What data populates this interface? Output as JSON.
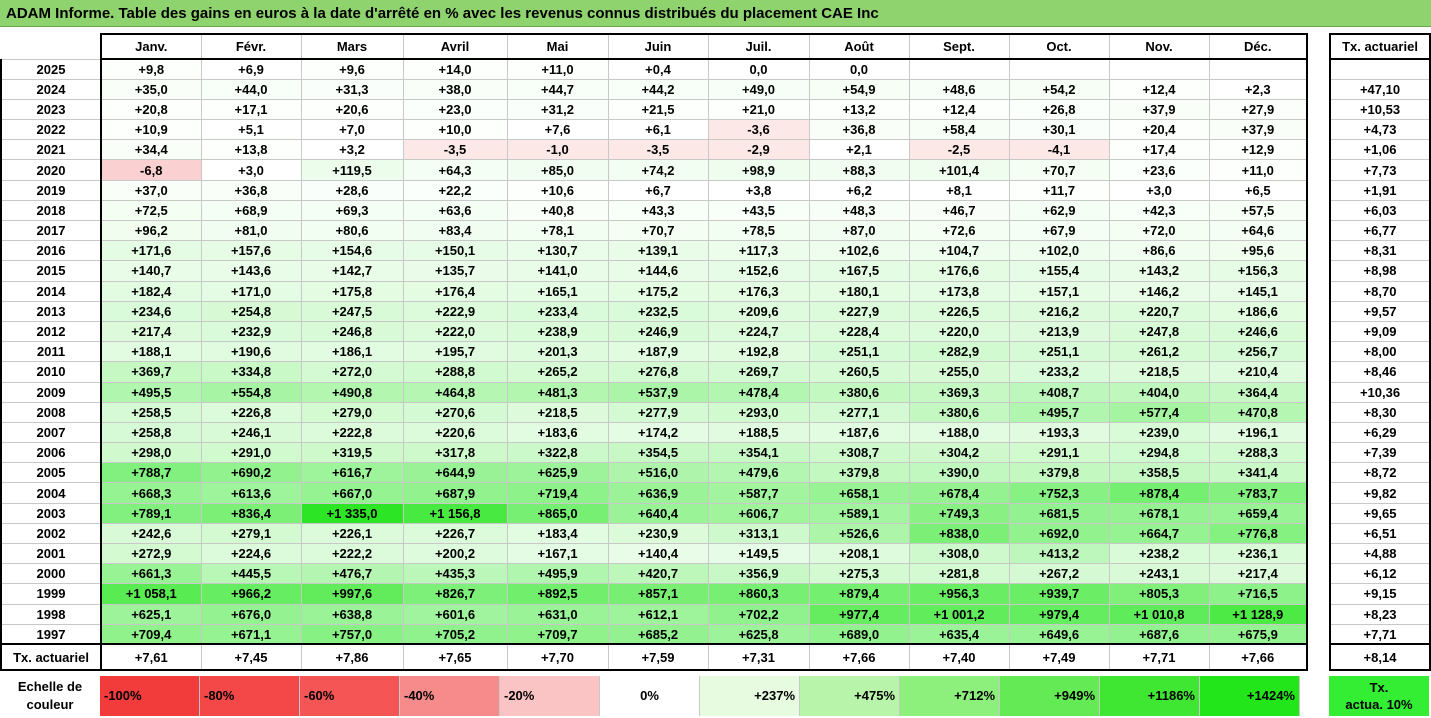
{
  "title": "ADAM Informe. Table des gains en euros à la date d'arrêté en % avec les revenus connus distribués du placement CAE Inc",
  "months": [
    "Janv.",
    "Févr.",
    "Mars",
    "Avril",
    "Mai",
    "Juin",
    "Juil.",
    "Août",
    "Sept.",
    "Oct.",
    "Nov.",
    "Déc."
  ],
  "side_header": "Tx. actuariel",
  "rows": [
    {
      "year": "2025",
      "values": [
        "+9,8",
        "+6,9",
        "+9,6",
        "+14,0",
        "+11,0",
        "+0,4",
        "0,0",
        "0,0",
        "",
        "",
        "",
        ""
      ],
      "rate": ""
    },
    {
      "year": "2024",
      "values": [
        "+35,0",
        "+44,0",
        "+31,3",
        "+38,0",
        "+44,7",
        "+44,2",
        "+49,0",
        "+54,9",
        "+48,6",
        "+54,2",
        "+12,4",
        "+2,3"
      ],
      "rate": "+47,10"
    },
    {
      "year": "2023",
      "values": [
        "+20,8",
        "+17,1",
        "+20,6",
        "+23,0",
        "+31,2",
        "+21,5",
        "+21,0",
        "+13,2",
        "+12,4",
        "+26,8",
        "+37,9",
        "+27,9"
      ],
      "rate": "+10,53"
    },
    {
      "year": "2022",
      "values": [
        "+10,9",
        "+5,1",
        "+7,0",
        "+10,0",
        "+7,6",
        "+6,1",
        "-3,6",
        "+36,8",
        "+58,4",
        "+30,1",
        "+20,4",
        "+37,9"
      ],
      "rate": "+4,73"
    },
    {
      "year": "2021",
      "values": [
        "+34,4",
        "+13,8",
        "+3,2",
        "-3,5",
        "-1,0",
        "-3,5",
        "-2,9",
        "+2,1",
        "-2,5",
        "-4,1",
        "+17,4",
        "+12,9"
      ],
      "rate": "+1,06"
    },
    {
      "year": "2020",
      "values": [
        "-6,8",
        "+3,0",
        "+119,5",
        "+64,3",
        "+85,0",
        "+74,2",
        "+98,9",
        "+88,3",
        "+101,4",
        "+70,7",
        "+23,6",
        "+11,0"
      ],
      "rate": "+7,73"
    },
    {
      "year": "2019",
      "values": [
        "+37,0",
        "+36,8",
        "+28,6",
        "+22,2",
        "+10,6",
        "+6,7",
        "+3,8",
        "+6,2",
        "+8,1",
        "+11,7",
        "+3,0",
        "+6,5"
      ],
      "rate": "+1,91"
    },
    {
      "year": "2018",
      "values": [
        "+72,5",
        "+68,9",
        "+69,3",
        "+63,6",
        "+40,8",
        "+43,3",
        "+43,5",
        "+48,3",
        "+46,7",
        "+62,9",
        "+42,3",
        "+57,5"
      ],
      "rate": "+6,03"
    },
    {
      "year": "2017",
      "values": [
        "+96,2",
        "+81,0",
        "+80,6",
        "+83,4",
        "+78,1",
        "+70,7",
        "+78,5",
        "+87,0",
        "+72,6",
        "+67,9",
        "+72,0",
        "+64,6"
      ],
      "rate": "+6,77"
    },
    {
      "year": "2016",
      "values": [
        "+171,6",
        "+157,6",
        "+154,6",
        "+150,1",
        "+130,7",
        "+139,1",
        "+117,3",
        "+102,6",
        "+104,7",
        "+102,0",
        "+86,6",
        "+95,6"
      ],
      "rate": "+8,31"
    },
    {
      "year": "2015",
      "values": [
        "+140,7",
        "+143,6",
        "+142,7",
        "+135,7",
        "+141,0",
        "+144,6",
        "+152,6",
        "+167,5",
        "+176,6",
        "+155,4",
        "+143,2",
        "+156,3"
      ],
      "rate": "+8,98"
    },
    {
      "year": "2014",
      "values": [
        "+182,4",
        "+171,0",
        "+175,8",
        "+176,4",
        "+165,1",
        "+175,2",
        "+176,3",
        "+180,1",
        "+173,8",
        "+157,1",
        "+146,2",
        "+145,1"
      ],
      "rate": "+8,70"
    },
    {
      "year": "2013",
      "values": [
        "+234,6",
        "+254,8",
        "+247,5",
        "+222,9",
        "+233,4",
        "+232,5",
        "+209,6",
        "+227,9",
        "+226,5",
        "+216,2",
        "+220,7",
        "+186,6"
      ],
      "rate": "+9,57"
    },
    {
      "year": "2012",
      "values": [
        "+217,4",
        "+232,9",
        "+246,8",
        "+222,0",
        "+238,9",
        "+246,9",
        "+224,7",
        "+228,4",
        "+220,0",
        "+213,9",
        "+247,8",
        "+246,6"
      ],
      "rate": "+9,09"
    },
    {
      "year": "2011",
      "values": [
        "+188,1",
        "+190,6",
        "+186,1",
        "+195,7",
        "+201,3",
        "+187,9",
        "+192,8",
        "+251,1",
        "+282,9",
        "+251,1",
        "+261,2",
        "+256,7"
      ],
      "rate": "+8,00"
    },
    {
      "year": "2010",
      "values": [
        "+369,7",
        "+334,8",
        "+272,0",
        "+288,8",
        "+265,2",
        "+276,8",
        "+269,7",
        "+260,5",
        "+255,0",
        "+233,2",
        "+218,5",
        "+210,4"
      ],
      "rate": "+8,46"
    },
    {
      "year": "2009",
      "values": [
        "+495,5",
        "+554,8",
        "+490,8",
        "+464,8",
        "+481,3",
        "+537,9",
        "+478,4",
        "+380,6",
        "+369,3",
        "+408,7",
        "+404,0",
        "+364,4"
      ],
      "rate": "+10,36"
    },
    {
      "year": "2008",
      "values": [
        "+258,5",
        "+226,8",
        "+279,0",
        "+270,6",
        "+218,5",
        "+277,9",
        "+293,0",
        "+277,1",
        "+380,6",
        "+495,7",
        "+577,4",
        "+470,8"
      ],
      "rate": "+8,30"
    },
    {
      "year": "2007",
      "values": [
        "+258,8",
        "+246,1",
        "+222,8",
        "+220,6",
        "+183,6",
        "+174,2",
        "+188,5",
        "+187,6",
        "+188,0",
        "+193,3",
        "+239,0",
        "+196,1"
      ],
      "rate": "+6,29"
    },
    {
      "year": "2006",
      "values": [
        "+298,0",
        "+291,0",
        "+319,5",
        "+317,8",
        "+322,8",
        "+354,5",
        "+354,1",
        "+308,7",
        "+304,2",
        "+291,1",
        "+294,8",
        "+288,3"
      ],
      "rate": "+7,39"
    },
    {
      "year": "2005",
      "values": [
        "+788,7",
        "+690,2",
        "+616,7",
        "+644,9",
        "+625,9",
        "+516,0",
        "+479,6",
        "+379,8",
        "+390,0",
        "+379,8",
        "+358,5",
        "+341,4"
      ],
      "rate": "+8,72"
    },
    {
      "year": "2004",
      "values": [
        "+668,3",
        "+613,6",
        "+667,0",
        "+687,9",
        "+719,4",
        "+636,9",
        "+587,7",
        "+658,1",
        "+678,4",
        "+752,3",
        "+878,4",
        "+783,7"
      ],
      "rate": "+9,82"
    },
    {
      "year": "2003",
      "values": [
        "+789,1",
        "+836,4",
        "+1 335,0",
        "+1 156,8",
        "+865,0",
        "+640,4",
        "+606,7",
        "+589,1",
        "+749,3",
        "+681,5",
        "+678,1",
        "+659,4"
      ],
      "rate": "+9,65"
    },
    {
      "year": "2002",
      "values": [
        "+242,6",
        "+279,1",
        "+226,1",
        "+226,7",
        "+183,4",
        "+230,9",
        "+313,1",
        "+526,6",
        "+838,0",
        "+692,0",
        "+664,7",
        "+776,8"
      ],
      "rate": "+6,51"
    },
    {
      "year": "2001",
      "values": [
        "+272,9",
        "+224,6",
        "+222,2",
        "+200,2",
        "+167,1",
        "+140,4",
        "+149,5",
        "+208,1",
        "+308,0",
        "+413,2",
        "+238,2",
        "+236,1"
      ],
      "rate": "+4,88"
    },
    {
      "year": "2000",
      "values": [
        "+661,3",
        "+445,5",
        "+476,7",
        "+435,3",
        "+495,9",
        "+420,7",
        "+356,9",
        "+275,3",
        "+281,8",
        "+267,2",
        "+243,1",
        "+217,4"
      ],
      "rate": "+6,12"
    },
    {
      "year": "1999",
      "values": [
        "+1 058,1",
        "+966,2",
        "+997,6",
        "+826,7",
        "+892,5",
        "+857,1",
        "+860,3",
        "+879,4",
        "+956,3",
        "+939,7",
        "+805,3",
        "+716,5"
      ],
      "rate": "+9,15"
    },
    {
      "year": "1998",
      "values": [
        "+625,1",
        "+676,0",
        "+638,8",
        "+601,6",
        "+631,0",
        "+612,1",
        "+702,2",
        "+977,4",
        "+1 001,2",
        "+979,4",
        "+1 010,8",
        "+1 128,9"
      ],
      "rate": "+8,23"
    },
    {
      "year": "1997",
      "values": [
        "+709,4",
        "+671,1",
        "+757,0",
        "+705,2",
        "+709,7",
        "+685,2",
        "+625,8",
        "+689,0",
        "+635,4",
        "+649,6",
        "+687,6",
        "+675,9"
      ],
      "rate": "+7,71"
    }
  ],
  "footer": {
    "label": "Tx. actuariel",
    "values": [
      "+7,61",
      "+7,45",
      "+7,86",
      "+7,65",
      "+7,70",
      "+7,59",
      "+7,31",
      "+7,66",
      "+7,40",
      "+7,49",
      "+7,71",
      "+7,66"
    ],
    "total": "+8,14"
  },
  "scale": {
    "label_line1": "Echelle de",
    "label_line2": "couleur",
    "steps": [
      {
        "text": "-100%",
        "color": "#f23b3b",
        "kind": "neg"
      },
      {
        "text": "-80%",
        "color": "#f44848",
        "kind": "neg"
      },
      {
        "text": "-60%",
        "color": "#f55555",
        "kind": "neg"
      },
      {
        "text": "-40%",
        "color": "#f78a8a",
        "kind": "neg"
      },
      {
        "text": "-20%",
        "color": "#fbc4c4",
        "kind": "neg"
      },
      {
        "text": "0%",
        "color": "#ffffff",
        "kind": "mid"
      },
      {
        "text": "+237%",
        "color": "#e6fbe0",
        "kind": "pos"
      },
      {
        "text": "+475%",
        "color": "#b8f5aa",
        "kind": "pos"
      },
      {
        "text": "+712%",
        "color": "#8ef07c",
        "kind": "pos"
      },
      {
        "text": "+949%",
        "color": "#64ea54",
        "kind": "pos"
      },
      {
        "text": "+1186%",
        "color": "#3fe733",
        "kind": "pos"
      },
      {
        "text": "+1424%",
        "color": "#22e51a",
        "kind": "pos"
      }
    ],
    "side_line1": "Tx.",
    "side_line2": "actua. 10%"
  },
  "colors": {
    "neg_light": "#fde8e8",
    "neg_mid": "#fbd0d0",
    "title_bg": "#8fd36e"
  }
}
